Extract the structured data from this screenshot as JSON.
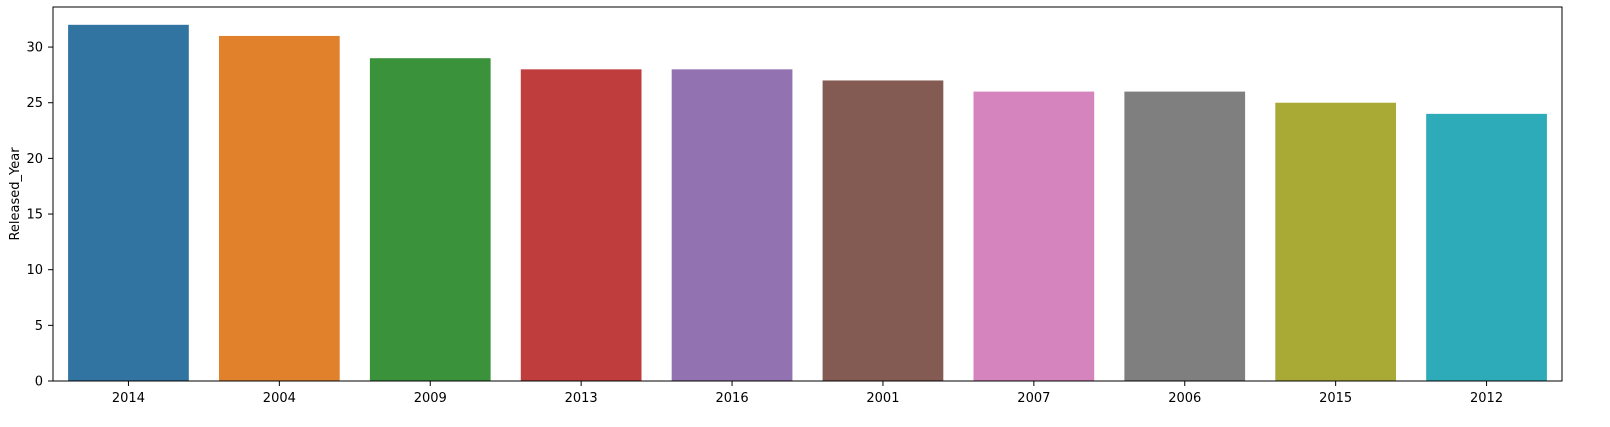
{
  "chart_data": {
    "type": "bar",
    "title": "",
    "xlabel": "",
    "ylabel": "Released_Year",
    "categories": [
      "2014",
      "2004",
      "2009",
      "2013",
      "2016",
      "2001",
      "2007",
      "2006",
      "2015",
      "2012"
    ],
    "values": [
      32,
      31,
      29,
      28,
      28,
      27,
      26,
      26,
      25,
      24
    ],
    "colors": [
      "#3274a1",
      "#e1812c",
      "#3a923a",
      "#c03d3e",
      "#9372b2",
      "#845b53",
      "#d684bd",
      "#7f7f7f",
      "#a9aa35",
      "#2eabb8"
    ],
    "ylim": [
      0,
      33.6
    ],
    "yticks": [
      "0",
      "5",
      "10",
      "15",
      "20",
      "25",
      "30"
    ],
    "grid": false,
    "legend": "none"
  }
}
